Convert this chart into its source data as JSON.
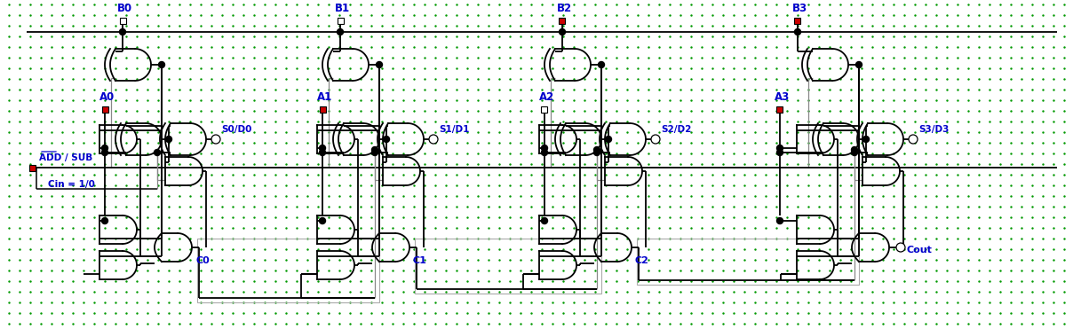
{
  "bg_color": "#ffffff",
  "dot_color": "#009900",
  "line_color": "#000000",
  "label_color": "#0000cc",
  "pin_color_red": "#cc0000",
  "pin_color_white": "#ffffff",
  "figsize": [
    12.08,
    3.71
  ],
  "dpi": 100,
  "bits": [
    "B0",
    "B1",
    "B2",
    "B3"
  ],
  "a_labels": [
    "A0",
    "A1",
    "A2",
    "A3"
  ],
  "s_labels": [
    "S0/D0",
    "S1/D1",
    "S2/D2",
    "S3/D3"
  ],
  "c_labels": [
    "C0",
    "C1",
    "C2",
    "Cout"
  ],
  "add_sub_label": "ADD / SUB",
  "cin_label": "Cin = 1/0",
  "b_pin_red": [
    false,
    false,
    true,
    true
  ],
  "a_pin_red": [
    true,
    true,
    false,
    true
  ]
}
